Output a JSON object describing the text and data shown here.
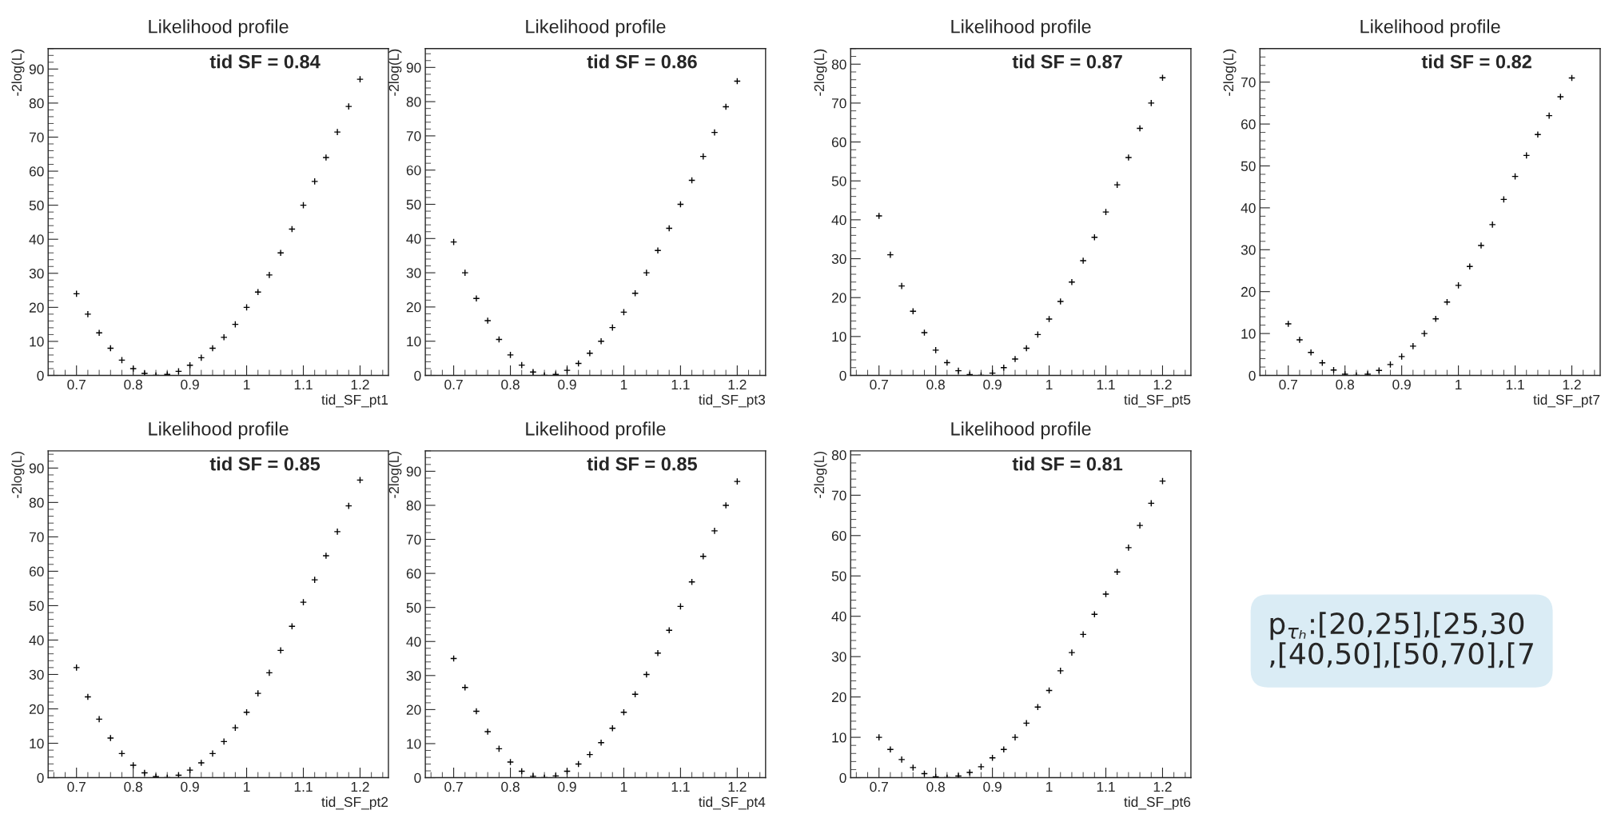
{
  "chart_data": [
    {
      "type": "scatter",
      "title": "Likelihood profile",
      "xlabel": "tid_SF_pt1",
      "ylabel": "-2log(L)",
      "annotations": [
        "tid SF = 0.84"
      ],
      "marker": "cross",
      "grid": false,
      "xlim": [
        0.65,
        1.25
      ],
      "xticks": [
        0.7,
        0.8,
        0.9,
        1,
        1.1,
        1.2
      ],
      "ylim": [
        0,
        96
      ],
      "yticks": [
        0,
        10,
        20,
        30,
        40,
        50,
        60,
        70,
        80,
        90
      ],
      "x": [
        0.7,
        0.72,
        0.74,
        0.76,
        0.78,
        0.8,
        0.82,
        0.84,
        0.86,
        0.88,
        0.9,
        0.92,
        0.94,
        0.96,
        0.98,
        1.0,
        1.02,
        1.04,
        1.06,
        1.08,
        1.1,
        1.12,
        1.14,
        1.16,
        1.18,
        1.2
      ],
      "series": [
        {
          "color": "#000000",
          "values": [
            24,
            18,
            12.5,
            8,
            4.5,
            2,
            0.6,
            0,
            0.3,
            1.2,
            3,
            5.2,
            8,
            11.2,
            15,
            20,
            24.5,
            29.5,
            36,
            43,
            50,
            57,
            64,
            71.5,
            79,
            87
          ]
        }
      ]
    },
    {
      "type": "scatter",
      "title": "Likelihood profile",
      "xlabel": "tid_SF_pt3",
      "ylabel": "-2log(L)",
      "annotations": [
        "tid SF = 0.86"
      ],
      "marker": "cross",
      "grid": false,
      "xlim": [
        0.65,
        1.25
      ],
      "xticks": [
        0.7,
        0.8,
        0.9,
        1,
        1.1,
        1.2
      ],
      "ylim": [
        0,
        95.5
      ],
      "yticks": [
        0,
        10,
        20,
        30,
        40,
        50,
        60,
        70,
        80,
        90
      ],
      "x": [
        0.7,
        0.72,
        0.74,
        0.76,
        0.78,
        0.8,
        0.82,
        0.84,
        0.86,
        0.88,
        0.9,
        0.92,
        0.94,
        0.96,
        0.98,
        1.0,
        1.02,
        1.04,
        1.06,
        1.08,
        1.1,
        1.12,
        1.14,
        1.16,
        1.18,
        1.2
      ],
      "series": [
        {
          "color": "#000000",
          "values": [
            39,
            30,
            22.5,
            16,
            10.5,
            6,
            3,
            1,
            0,
            0.3,
            1.5,
            3.5,
            6.5,
            10,
            14,
            18.5,
            24,
            30,
            36.5,
            43,
            50,
            57,
            64,
            71,
            78.5,
            86
          ]
        }
      ]
    },
    {
      "type": "scatter",
      "title": "Likelihood profile",
      "xlabel": "tid_SF_pt5",
      "ylabel": "-2log(L)",
      "annotations": [
        "tid SF = 0.87"
      ],
      "marker": "cross",
      "grid": false,
      "xlim": [
        0.65,
        1.25
      ],
      "xticks": [
        0.7,
        0.8,
        0.9,
        1,
        1.1,
        1.2
      ],
      "ylim": [
        0,
        84
      ],
      "yticks": [
        0,
        10,
        20,
        30,
        40,
        50,
        60,
        70,
        80
      ],
      "x": [
        0.7,
        0.72,
        0.74,
        0.76,
        0.78,
        0.8,
        0.82,
        0.84,
        0.86,
        0.88,
        0.9,
        0.92,
        0.94,
        0.96,
        0.98,
        1.0,
        1.02,
        1.04,
        1.06,
        1.08,
        1.1,
        1.12,
        1.14,
        1.16,
        1.18,
        1.2
      ],
      "series": [
        {
          "color": "#000000",
          "values": [
            41,
            31,
            23,
            16.5,
            11,
            6.5,
            3.3,
            1.2,
            0.2,
            0,
            0.6,
            2,
            4.2,
            7,
            10.5,
            14.5,
            19,
            24,
            29.5,
            35.5,
            42,
            49,
            56,
            63.5,
            70,
            76.5
          ]
        }
      ]
    },
    {
      "type": "scatter",
      "title": "Likelihood profile",
      "xlabel": "tid_SF_pt7",
      "ylabel": "-2log(L)",
      "annotations": [
        "tid SF = 0.82"
      ],
      "marker": "cross",
      "grid": false,
      "xlim": [
        0.65,
        1.25
      ],
      "xticks": [
        0.7,
        0.8,
        0.9,
        1,
        1.1,
        1.2
      ],
      "ylim": [
        0,
        78
      ],
      "yticks": [
        0,
        10,
        20,
        30,
        40,
        50,
        60,
        70
      ],
      "x": [
        0.7,
        0.72,
        0.74,
        0.76,
        0.78,
        0.8,
        0.82,
        0.84,
        0.86,
        0.88,
        0.9,
        0.92,
        0.94,
        0.96,
        0.98,
        1.0,
        1.02,
        1.04,
        1.06,
        1.08,
        1.1,
        1.12,
        1.14,
        1.16,
        1.18,
        1.2
      ],
      "series": [
        {
          "color": "#000000",
          "values": [
            12.3,
            8.5,
            5.5,
            3,
            1.3,
            0.3,
            0,
            0.3,
            1.2,
            2.6,
            4.5,
            7,
            10,
            13.5,
            17.5,
            21.5,
            26,
            31,
            36,
            42,
            47.5,
            52.5,
            57.5,
            62,
            66.5,
            71
          ]
        }
      ]
    },
    {
      "type": "scatter",
      "title": "Likelihood profile",
      "xlabel": "tid_SF_pt2",
      "ylabel": "-2log(L)",
      "annotations": [
        "tid SF = 0.85"
      ],
      "marker": "cross",
      "grid": false,
      "xlim": [
        0.65,
        1.25
      ],
      "xticks": [
        0.7,
        0.8,
        0.9,
        1,
        1.1,
        1.2
      ],
      "ylim": [
        0,
        95
      ],
      "yticks": [
        0,
        10,
        20,
        30,
        40,
        50,
        60,
        70,
        80,
        90
      ],
      "x": [
        0.7,
        0.72,
        0.74,
        0.76,
        0.78,
        0.8,
        0.82,
        0.84,
        0.86,
        0.88,
        0.9,
        0.92,
        0.94,
        0.96,
        0.98,
        1.0,
        1.02,
        1.04,
        1.06,
        1.08,
        1.1,
        1.12,
        1.14,
        1.16,
        1.18,
        1.2
      ],
      "series": [
        {
          "color": "#000000",
          "values": [
            32,
            23.5,
            17,
            11.5,
            7,
            3.6,
            1.4,
            0.3,
            0,
            0.7,
            2.2,
            4.3,
            7,
            10.5,
            14.5,
            19,
            24.5,
            30.5,
            37,
            44,
            51,
            57.5,
            64.5,
            71.5,
            79,
            86.5
          ]
        }
      ]
    },
    {
      "type": "scatter",
      "title": "Likelihood profile",
      "xlabel": "tid_SF_pt4",
      "ylabel": "-2log(L)",
      "annotations": [
        "tid SF = 0.85"
      ],
      "marker": "cross",
      "grid": false,
      "xlim": [
        0.65,
        1.25
      ],
      "xticks": [
        0.7,
        0.8,
        0.9,
        1,
        1.1,
        1.2
      ],
      "ylim": [
        0,
        96
      ],
      "yticks": [
        0,
        10,
        20,
        30,
        40,
        50,
        60,
        70,
        80,
        90
      ],
      "x": [
        0.7,
        0.72,
        0.74,
        0.76,
        0.78,
        0.8,
        0.82,
        0.84,
        0.86,
        0.88,
        0.9,
        0.92,
        0.94,
        0.96,
        0.98,
        1.0,
        1.02,
        1.04,
        1.06,
        1.08,
        1.1,
        1.12,
        1.14,
        1.16,
        1.18,
        1.2
      ],
      "series": [
        {
          "color": "#000000",
          "values": [
            35,
            26.5,
            19.5,
            13.5,
            8.5,
            4.6,
            1.9,
            0.4,
            0,
            0.5,
            1.9,
            4,
            6.8,
            10.3,
            14.5,
            19.2,
            24.5,
            30.3,
            36.6,
            43.3,
            50.3,
            57.5,
            65,
            72.5,
            80,
            87
          ]
        }
      ]
    },
    {
      "type": "scatter",
      "title": "Likelihood profile",
      "xlabel": "tid_SF_pt6",
      "ylabel": "-2log(L)",
      "annotations": [
        "tid SF = 0.81"
      ],
      "marker": "cross",
      "grid": false,
      "xlim": [
        0.65,
        1.25
      ],
      "xticks": [
        0.7,
        0.8,
        0.9,
        1,
        1.1,
        1.2
      ],
      "ylim": [
        0,
        81
      ],
      "yticks": [
        0,
        10,
        20,
        30,
        40,
        50,
        60,
        70,
        80
      ],
      "x": [
        0.7,
        0.72,
        0.74,
        0.76,
        0.78,
        0.8,
        0.82,
        0.84,
        0.86,
        0.88,
        0.9,
        0.92,
        0.94,
        0.96,
        0.98,
        1.0,
        1.02,
        1.04,
        1.06,
        1.08,
        1.1,
        1.12,
        1.14,
        1.16,
        1.18,
        1.2
      ],
      "series": [
        {
          "color": "#000000",
          "values": [
            10,
            7,
            4.5,
            2.5,
            1,
            0.2,
            0,
            0.4,
            1.3,
            2.7,
            4.9,
            7,
            10,
            13.5,
            17.5,
            21.6,
            26.5,
            31,
            35.5,
            40.5,
            45.5,
            51,
            57,
            62.5,
            68,
            73.5
          ]
        }
      ]
    },
    {
      "type": "other",
      "annotations": [
        "p$_{τₕ}$:[20,25],[25,30\n,[40,50],[50,70],[7"
      ]
    }
  ]
}
